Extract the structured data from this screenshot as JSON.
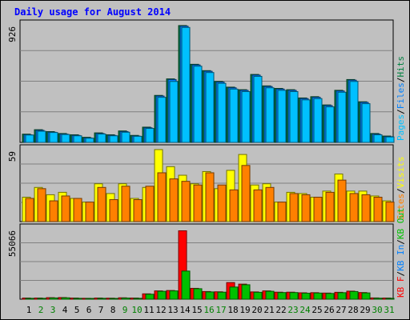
{
  "title": "Daily usage for August 2014",
  "chart_data": [
    {
      "type": "bar",
      "panel": "top",
      "ymax_label": "926",
      "ylim": [
        0,
        926
      ],
      "legend": [
        {
          "text": "Pages",
          "color": "#00c0ff"
        },
        {
          "text": "/",
          "color": "#000000"
        },
        {
          "text": "Files",
          "color": "#0080ff"
        },
        {
          "text": "/",
          "color": "#000000"
        },
        {
          "text": "Hits",
          "color": "#008040"
        }
      ],
      "categories": [
        "1",
        "2",
        "3",
        "4",
        "5",
        "6",
        "7",
        "8",
        "9",
        "10",
        "11",
        "12",
        "13",
        "14",
        "15",
        "16",
        "17",
        "18",
        "19",
        "20",
        "21",
        "22",
        "23",
        "24",
        "25",
        "26",
        "27",
        "28",
        "29",
        "30",
        "31"
      ],
      "series": [
        {
          "name": "Hits",
          "color": "#008040",
          "values": [
            65,
            100,
            85,
            70,
            60,
            40,
            75,
            60,
            90,
            55,
            120,
            370,
            500,
            920,
            615,
            565,
            480,
            435,
            415,
            535,
            445,
            425,
            415,
            350,
            360,
            295,
            410,
            495,
            320,
            70,
            50
          ]
        },
        {
          "name": "Files",
          "color": "#0080ff",
          "values": [
            60,
            95,
            80,
            65,
            55,
            35,
            70,
            55,
            85,
            50,
            115,
            365,
            495,
            915,
            610,
            560,
            475,
            430,
            410,
            530,
            440,
            420,
            410,
            345,
            355,
            290,
            405,
            490,
            315,
            65,
            45
          ]
        },
        {
          "name": "Pages",
          "color": "#00c0ff",
          "values": [
            58,
            88,
            78,
            62,
            52,
            33,
            66,
            52,
            80,
            48,
            110,
            355,
            480,
            905,
            600,
            550,
            465,
            420,
            400,
            520,
            430,
            410,
            400,
            335,
            345,
            280,
            395,
            480,
            305,
            60,
            43
          ]
        }
      ]
    },
    {
      "type": "bar",
      "panel": "middle",
      "ymax_label": "59",
      "ylim": [
        0,
        59
      ],
      "legend": [
        {
          "text": "Sites",
          "color": "#ff8000"
        },
        {
          "text": "/",
          "color": "#000000"
        },
        {
          "text": "Visits",
          "color": "#ffff00"
        }
      ],
      "categories": [
        "1",
        "2",
        "3",
        "4",
        "5",
        "6",
        "7",
        "8",
        "9",
        "10",
        "11",
        "12",
        "13",
        "14",
        "15",
        "16",
        "17",
        "18",
        "19",
        "20",
        "21",
        "22",
        "23",
        "24",
        "25",
        "26",
        "27",
        "28",
        "29",
        "30",
        "31"
      ],
      "series": [
        {
          "name": "Visits",
          "color": "#ffff00",
          "values": [
            20,
            28,
            22,
            24,
            19,
            16,
            31,
            23,
            31,
            19,
            28,
            59,
            45,
            38,
            31,
            41,
            27,
            42,
            55,
            30,
            31,
            16,
            24,
            23,
            20,
            25,
            39,
            25,
            25,
            21,
            17
          ]
        },
        {
          "name": "Sites",
          "color": "#ff8000",
          "values": [
            19,
            27,
            17,
            21,
            19,
            16,
            28,
            18,
            29,
            18,
            29,
            40,
            35,
            33,
            30,
            40,
            30,
            26,
            46,
            26,
            28,
            16,
            23,
            22,
            20,
            24,
            34,
            23,
            22,
            20,
            16
          ]
        }
      ]
    },
    {
      "type": "bar",
      "panel": "bottom",
      "ymax_label": "55066",
      "ylim": [
        0,
        55066
      ],
      "legend": [
        {
          "text": "KB F",
          "color": "#ff0000"
        },
        {
          "text": "/",
          "color": "#000000"
        },
        {
          "text": "KB In",
          "color": "#0080ff"
        },
        {
          "text": "/",
          "color": "#000000"
        },
        {
          "text": "KB Out",
          "color": "#00c000"
        }
      ],
      "categories": [
        "1",
        "2",
        "3",
        "4",
        "5",
        "6",
        "7",
        "8",
        "9",
        "10",
        "11",
        "12",
        "13",
        "14",
        "15",
        "16",
        "17",
        "18",
        "19",
        "20",
        "21",
        "22",
        "23",
        "24",
        "25",
        "26",
        "27",
        "28",
        "29",
        "30",
        "31"
      ],
      "series": [
        {
          "name": "KB F",
          "color": "#ff0000",
          "values": [
            900,
            900,
            1200,
            1300,
            900,
            700,
            900,
            800,
            1100,
            900,
            4200,
            6500,
            6800,
            53500,
            8500,
            6000,
            5800,
            13000,
            11800,
            5700,
            6500,
            5500,
            5500,
            5000,
            5100,
            4800,
            5400,
            6300,
            5200,
            1000,
            900
          ]
        },
        {
          "name": "KB Out",
          "color": "#00c000",
          "values": [
            700,
            700,
            1000,
            1100,
            700,
            500,
            700,
            600,
            900,
            700,
            3900,
            6200,
            6500,
            22000,
            8200,
            5700,
            5500,
            9500,
            11300,
            5400,
            6200,
            5200,
            5200,
            4700,
            4800,
            4500,
            5100,
            6000,
            4900,
            800,
            700
          ]
        }
      ]
    }
  ],
  "weekend_days": [
    "2",
    "3",
    "9",
    "10",
    "16",
    "17",
    "23",
    "24",
    "30",
    "31"
  ],
  "colors": {
    "weekday": "#000000",
    "weekend": "#008000",
    "plot_bg": "#c0c0c0",
    "grid": "#808080"
  }
}
